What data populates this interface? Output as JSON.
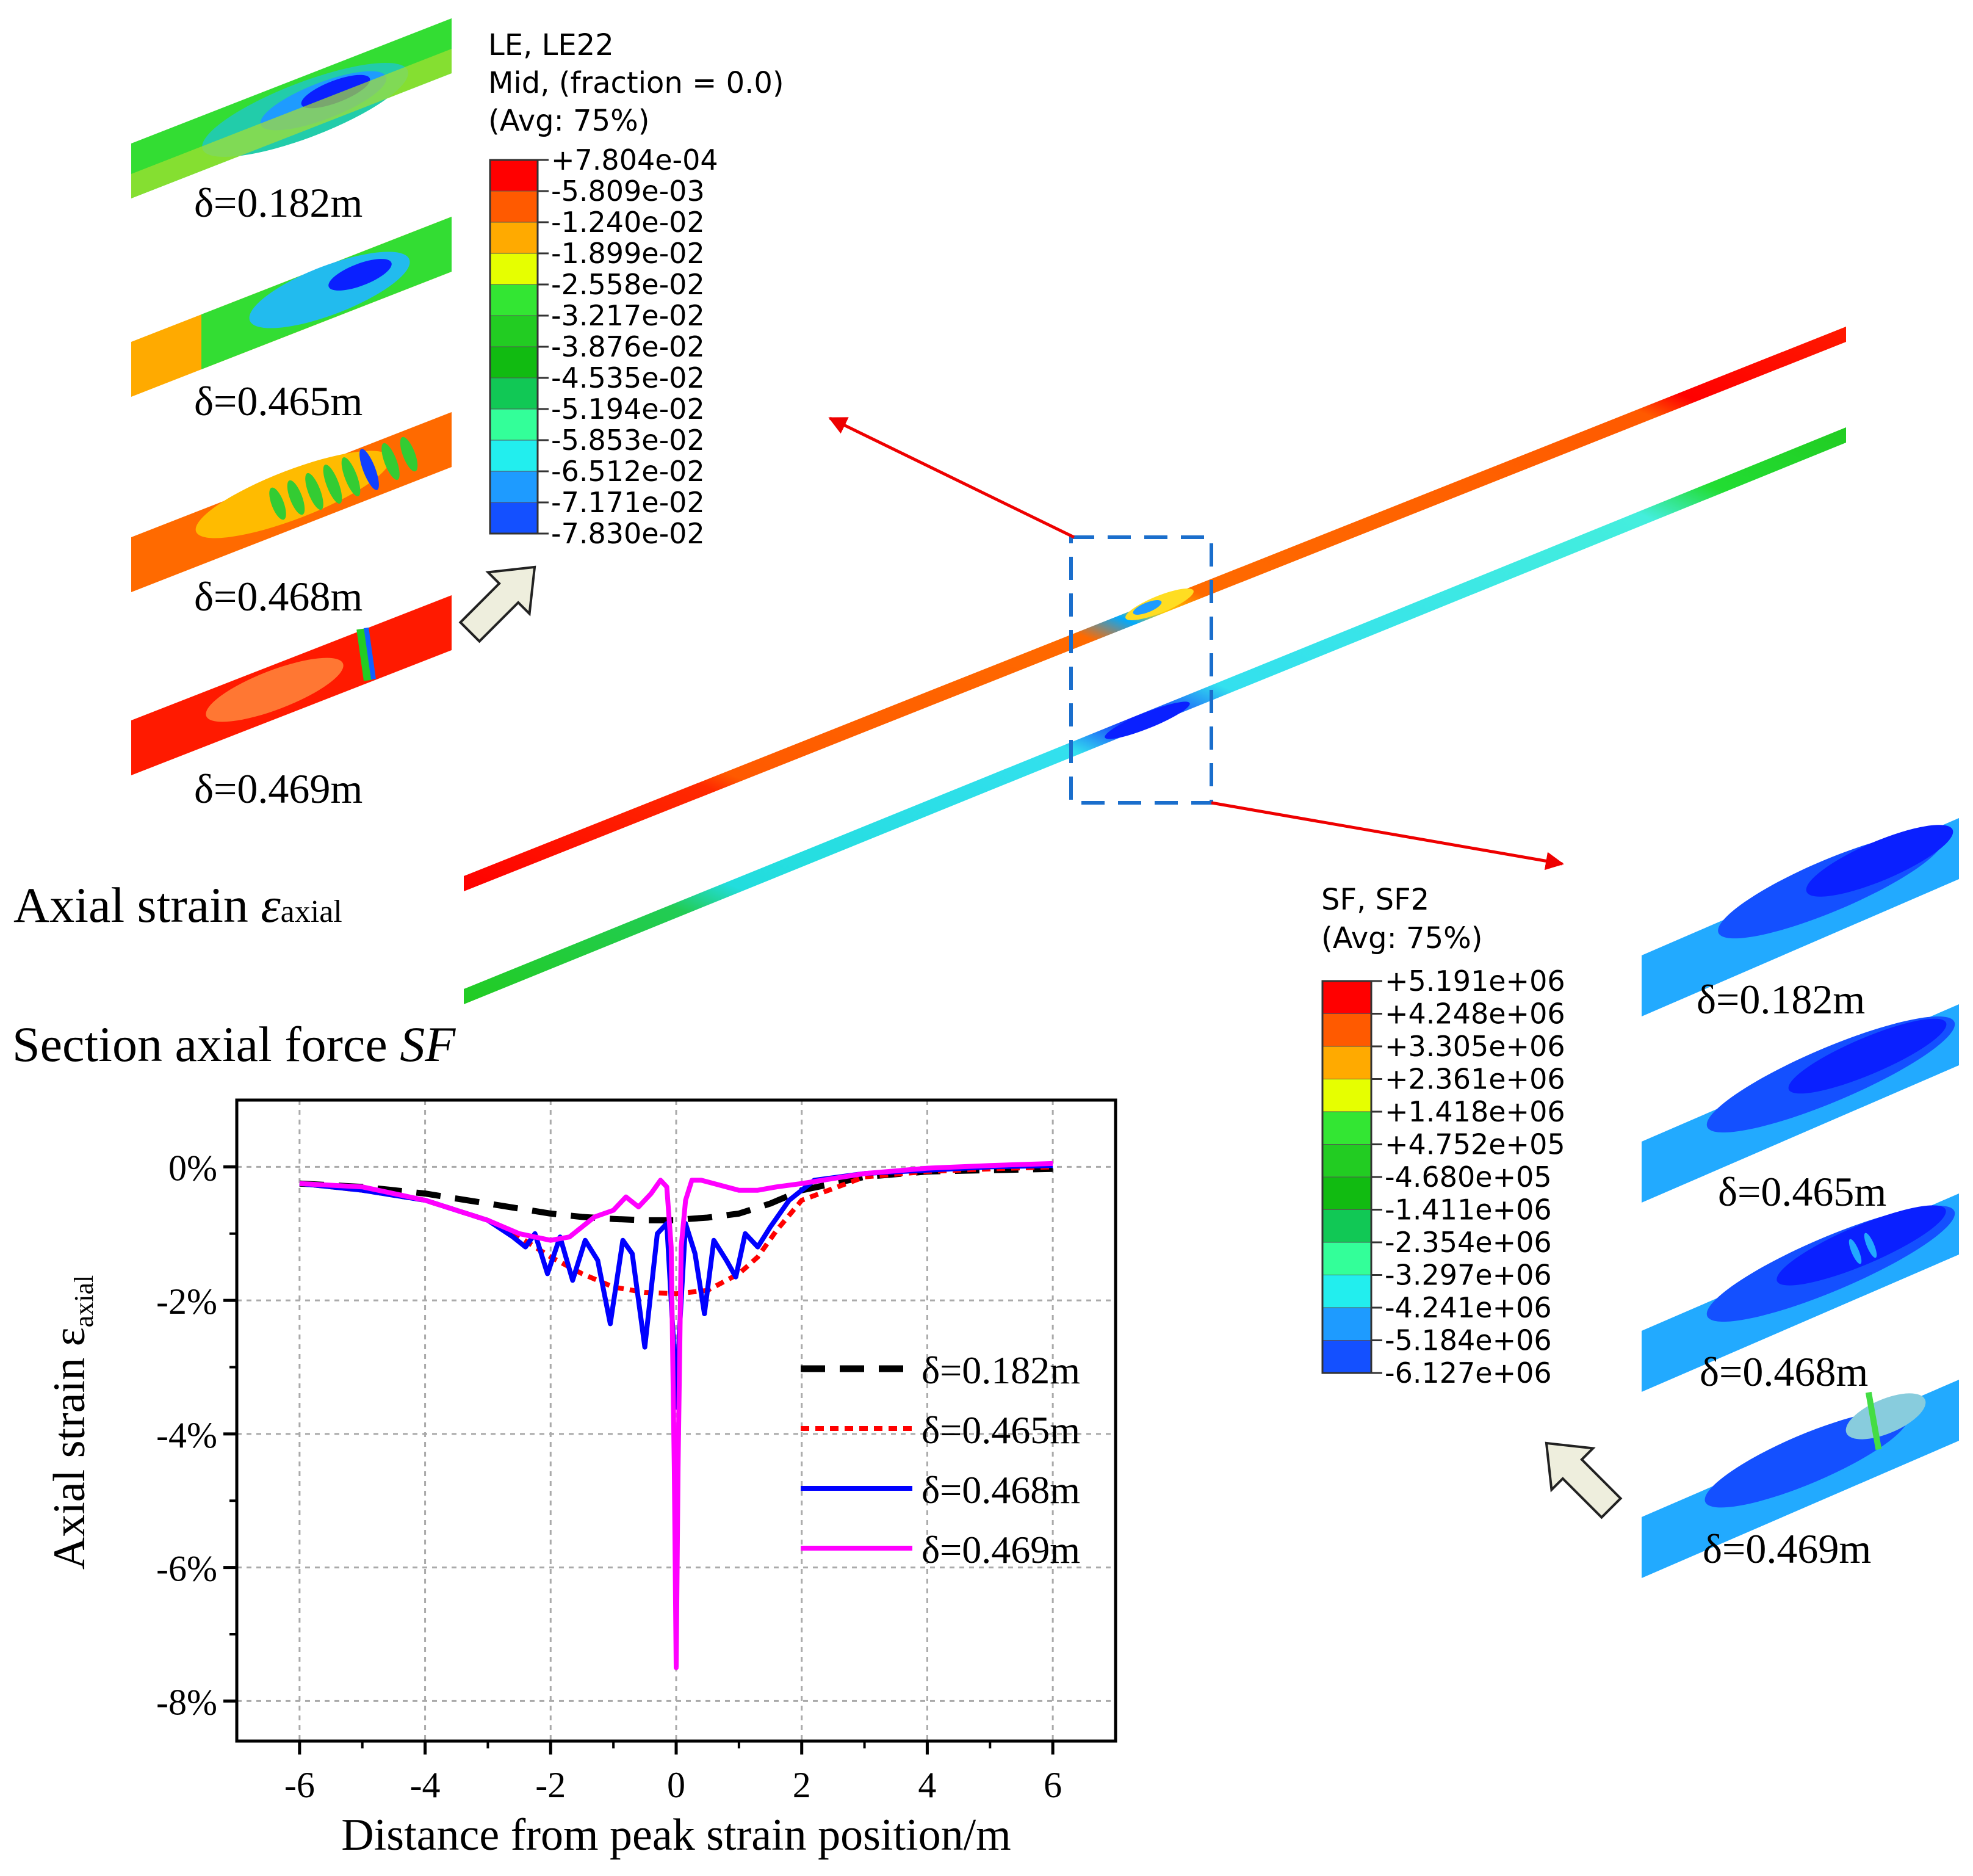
{
  "colors": {
    "contour": [
      "#ff0000",
      "#ff5a00",
      "#ffaa00",
      "#e6ff00",
      "#33e633",
      "#22cc22",
      "#11bb11",
      "#11c855",
      "#33ff99",
      "#22eeee",
      "#1e9bff",
      "#1450ff",
      "#0000ff"
    ]
  },
  "le_legend": {
    "title_1": "LE, LE22",
    "title_2": "Mid, (fraction = 0.0)",
    "title_3": "(Avg: 75%)",
    "values": [
      "+7.804e-04",
      "-5.809e-03",
      "-1.240e-02",
      "-1.899e-02",
      "-2.558e-02",
      "-3.217e-02",
      "-3.876e-02",
      "-4.535e-02",
      "-5.194e-02",
      "-5.853e-02",
      "-6.512e-02",
      "-7.171e-02",
      "-7.830e-02"
    ]
  },
  "sf_legend": {
    "title_1": "SF, SF2",
    "title_2": "(Avg: 75%)",
    "values": [
      "+5.191e+06",
      "+4.248e+06",
      "+3.305e+06",
      "+2.361e+06",
      "+1.418e+06",
      "+4.752e+05",
      "-4.680e+05",
      "-1.411e+06",
      "-2.354e+06",
      "-3.297e+06",
      "-4.241e+06",
      "-5.184e+06",
      "-6.127e+06"
    ]
  },
  "left_panels": [
    "δ=0.182m",
    "δ=0.465m",
    "δ=0.468m",
    "δ=0.469m"
  ],
  "right_panels": [
    "δ=0.182m",
    "δ=0.465m",
    "δ=0.468m",
    "δ=0.469m"
  ],
  "labels": {
    "axial_strain": "Axial strain ",
    "axial_strain_symbol": "ε",
    "axial_strain_sub": "axial",
    "section_force": "Section axial force ",
    "section_force_symbol": "SF"
  },
  "chart_data": {
    "type": "line",
    "xlabel": "Distance from peak strain position/m",
    "ylabel": "Axial strain ε",
    "ylabel_sub": "axial",
    "xlim": [
      -7,
      7
    ],
    "ylim": [
      -8.6,
      1
    ],
    "xticks": [
      "-6",
      "-4",
      "-2",
      "0",
      "2",
      "4",
      "6"
    ],
    "yticks": [
      "0%",
      "-2%",
      "-4%",
      "-6%",
      "-8%"
    ],
    "grid": true,
    "legend_position": "lower-right",
    "series": [
      {
        "name": "δ=0.182m",
        "color": "#000000",
        "dash": "dashed",
        "x": [
          -6,
          -5,
          -4,
          -3,
          -2,
          -1.5,
          -1,
          -0.5,
          -0.2,
          0,
          0.2,
          0.5,
          1,
          1.5,
          2,
          3,
          4,
          5,
          6
        ],
        "y": [
          -0.25,
          -0.3,
          -0.4,
          -0.55,
          -0.7,
          -0.75,
          -0.78,
          -0.8,
          -0.8,
          -0.8,
          -0.78,
          -0.76,
          -0.7,
          -0.55,
          -0.35,
          -0.15,
          -0.07,
          -0.05,
          -0.03
        ]
      },
      {
        "name": "δ=0.465m",
        "color": "#ff0000",
        "dash": "dotted",
        "x": [
          -6,
          -5,
          -4,
          -3,
          -2.5,
          -2,
          -1.5,
          -1,
          -0.5,
          0,
          0.5,
          1,
          1.3,
          1.6,
          2,
          3,
          4,
          5,
          6
        ],
        "y": [
          -0.25,
          -0.35,
          -0.5,
          -0.8,
          -1.05,
          -1.35,
          -1.6,
          -1.8,
          -1.88,
          -1.9,
          -1.85,
          -1.6,
          -1.35,
          -0.95,
          -0.5,
          -0.15,
          -0.07,
          -0.03,
          0.0
        ]
      },
      {
        "name": "δ=0.468m",
        "color": "#0000ff",
        "dash": "solid",
        "x": [
          -6,
          -5,
          -4,
          -3,
          -2.6,
          -2.4,
          -2.25,
          -2.05,
          -1.85,
          -1.65,
          -1.45,
          -1.25,
          -1.05,
          -0.85,
          -0.7,
          -0.5,
          -0.3,
          -0.15,
          -0.05,
          0,
          0.05,
          0.15,
          0.3,
          0.45,
          0.6,
          0.8,
          0.95,
          1.1,
          1.3,
          1.5,
          1.8,
          2.2,
          3,
          4,
          5,
          6
        ],
        "y": [
          -0.25,
          -0.35,
          -0.5,
          -0.8,
          -1.05,
          -1.2,
          -1.0,
          -1.6,
          -1.05,
          -1.7,
          -1.1,
          -1.4,
          -2.35,
          -1.1,
          -1.3,
          -2.7,
          -1.0,
          -0.85,
          -2.5,
          -3.6,
          -2.5,
          -0.85,
          -1.3,
          -2.2,
          -1.1,
          -1.4,
          -1.65,
          -1.0,
          -1.2,
          -0.9,
          -0.5,
          -0.2,
          -0.1,
          -0.05,
          0.0,
          0.02
        ]
      },
      {
        "name": "δ=0.469m",
        "color": "#ff00ff",
        "dash": "solid",
        "x": [
          -6,
          -5,
          -4,
          -3,
          -2.5,
          -2,
          -1.7,
          -1.5,
          -1.3,
          -1.0,
          -0.8,
          -0.6,
          -0.4,
          -0.25,
          -0.15,
          -0.08,
          -0.03,
          0,
          0.03,
          0.08,
          0.15,
          0.25,
          0.4,
          0.6,
          0.8,
          1.0,
          1.3,
          1.6,
          2,
          3,
          4,
          5,
          6
        ],
        "y": [
          -0.25,
          -0.3,
          -0.5,
          -0.8,
          -1.0,
          -1.1,
          -1.05,
          -0.9,
          -0.75,
          -0.65,
          -0.45,
          -0.6,
          -0.4,
          -0.2,
          -0.3,
          -1.2,
          -4.5,
          -7.5,
          -4.5,
          -1.2,
          -0.5,
          -0.2,
          -0.2,
          -0.25,
          -0.3,
          -0.35,
          -0.35,
          -0.3,
          -0.25,
          -0.1,
          -0.02,
          0.02,
          0.05
        ]
      }
    ]
  }
}
